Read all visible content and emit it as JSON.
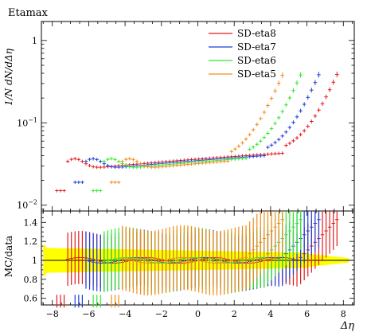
{
  "chart_data": {
    "type": "scatter",
    "title": "Etamax",
    "xlabel": "Δη",
    "main": {
      "ylabel": "1/N dN/dΔη",
      "yscale": "log",
      "ylim": [
        0.0085,
        1.7
      ],
      "yticks": [
        {
          "value": 0.01,
          "base": "10",
          "exp": "−2"
        },
        {
          "value": 0.1,
          "base": "10",
          "exp": "−1"
        },
        {
          "value": 1,
          "label": "1"
        }
      ]
    },
    "ratio": {
      "ylabel": "MC/data",
      "ylim": [
        0.53,
        1.52
      ],
      "yticks": [
        0.6,
        0.8,
        1,
        1.2,
        1.4
      ],
      "band_color": "#ffff00"
    },
    "xlim": [
      -8.6,
      8.6
    ],
    "xticks": [
      -8,
      -6,
      -4,
      -2,
      0,
      2,
      4,
      6,
      8
    ],
    "legend": {
      "position": "top-right"
    },
    "series": [
      {
        "name": "SD-eta8",
        "color": "#e41a1c",
        "eta": 8.0,
        "xerr": 0.1
      },
      {
        "name": "SD-eta7",
        "color": "#1f3fd8",
        "eta": 7.0,
        "xerr": 0.1
      },
      {
        "name": "SD-eta6",
        "color": "#2ee82e",
        "eta": 6.0,
        "xerr": 0.1
      },
      {
        "name": "SD-eta5",
        "color": "#f08c1a",
        "eta": 5.0,
        "xerr": 0.1
      }
    ]
  }
}
